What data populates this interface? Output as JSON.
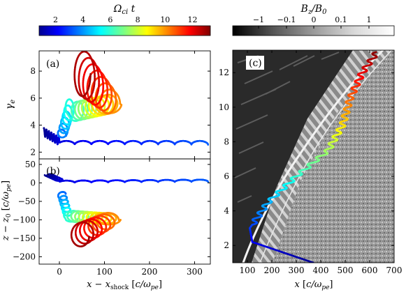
{
  "figure": {
    "colorbar_left": {
      "label": "Ω_ci t",
      "ticks": [
        "2",
        "4",
        "6",
        "8",
        "10",
        "12"
      ],
      "tick_values": [
        2,
        4,
        6,
        8,
        10,
        12
      ],
      "range": [
        0.8,
        13.3
      ],
      "colormap": "jet"
    },
    "colorbar_right": {
      "label": "B_z/B_0",
      "ticks": [
        "−1",
        "−0.1",
        "0",
        "0.1",
        "1"
      ],
      "colormap": "gray"
    }
  },
  "chart_data": [
    {
      "id": "a",
      "type": "line",
      "panel_label": "(a)",
      "ylabel": "γ_e",
      "xlim": [
        -45,
        335
      ],
      "ylim": [
        1.5,
        9.5
      ],
      "yticks": [
        2,
        4,
        6,
        8
      ],
      "xticks": [
        0,
        100,
        200,
        300
      ],
      "show_xtick_labels": false,
      "grid": false,
      "series": [
        {
          "color_by": "Ω_ci t",
          "description_points": [
            {
              "x": -35,
              "y": 3.5,
              "t": 1.0
            },
            {
              "x": 0,
              "y": 2.8,
              "t": 2.0
            },
            {
              "x": 100,
              "y": 2.6,
              "t": 2.6
            },
            {
              "x": 200,
              "y": 2.6,
              "t": 3.0
            },
            {
              "x": 330,
              "y": 2.7,
              "t": 3.5
            }
          ]
        }
      ]
    },
    {
      "id": "b",
      "type": "line",
      "panel_label": "(b)",
      "ylabel": "z − z_0 [c/ω_pe]",
      "xlabel": "x − x_shock [c/ω_pe]",
      "xlim": [
        -45,
        335
      ],
      "ylim": [
        -220,
        65
      ],
      "yticks": [
        50,
        0,
        -50,
        -100,
        -150,
        -200
      ],
      "xticks": [
        0,
        100,
        200,
        300
      ],
      "grid": false,
      "series": [
        {
          "color_by": "Ω_ci t",
          "description_points": [
            {
              "x": 330,
              "y": 2,
              "t": 3.5
            },
            {
              "x": 0,
              "y": 5,
              "t": 2.0
            },
            {
              "x": -20,
              "y": 20,
              "t": 1.0
            },
            {
              "x": 20,
              "y": -100,
              "t": 6.0
            },
            {
              "x": 110,
              "y": -95,
              "t": 9.5
            },
            {
              "x": 55,
              "y": -130,
              "t": 12.0
            }
          ]
        }
      ]
    },
    {
      "id": "c",
      "type": "heatmap",
      "panel_label": "(c)",
      "xlabel": "x [c/ω_pe]",
      "xlim": [
        40,
        700
      ],
      "ylim": [
        1,
        13.3
      ],
      "xticks": [
        100,
        200,
        300,
        400,
        500,
        600,
        700
      ],
      "yticks": [
        2,
        4,
        6,
        8,
        10,
        12
      ],
      "overlay_series": [
        {
          "color_by": "Ω_ci t",
          "points": [
            {
              "x": 370,
              "y": 1.0
            },
            {
              "x": 120,
              "y": 2.2
            },
            {
              "x": 110,
              "y": 3.0
            },
            {
              "x": 185,
              "y": 4.5
            },
            {
              "x": 300,
              "y": 6.0
            },
            {
              "x": 430,
              "y": 7.5
            },
            {
              "x": 490,
              "y": 9.0
            },
            {
              "x": 520,
              "y": 10.5
            },
            {
              "x": 570,
              "y": 12.0
            },
            {
              "x": 630,
              "y": 13.2
            }
          ]
        }
      ]
    }
  ]
}
